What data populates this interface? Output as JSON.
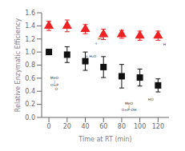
{
  "chart_data": {
    "type": "scatter",
    "xlabel": "Time at RT (min)",
    "ylabel": "Relative Enzymatic Efficiency",
    "x": [
      0,
      20,
      40,
      60,
      80,
      100,
      120
    ],
    "series": [
      {
        "color": "#EE2222",
        "marker": "triangle",
        "values": [
          1.4,
          1.4,
          1.35,
          1.27,
          1.27,
          1.25,
          1.25
        ],
        "errors": [
          0.07,
          0.09,
          0.07,
          0.08,
          0.06,
          0.07,
          0.07
        ]
      },
      {
        "color": "#111111",
        "marker": "square",
        "values": [
          1.0,
          0.96,
          0.86,
          0.77,
          0.63,
          0.61,
          0.49
        ],
        "errors": [
          0.04,
          0.12,
          0.14,
          0.16,
          0.18,
          0.13,
          0.1
        ]
      }
    ],
    "xlim": [
      -8,
      132
    ],
    "ylim": [
      0.0,
      1.6
    ],
    "xticks": [
      0,
      20,
      40,
      60,
      80,
      100,
      120
    ],
    "yticks": [
      {
        "value": 0.0,
        "label": "0.0"
      },
      0.2,
      0.4,
      0.6,
      0.8,
      {
        "value": 1.0,
        "label": "1.0"
      },
      1.2,
      1.4,
      1.6
    ],
    "grid": false,
    "annotations": [
      {
        "text": "HO",
        "x": 57,
        "y": 1.21
      },
      {
        "text": "H",
        "x": 127,
        "y": 1.12
      },
      {
        "text": "+",
        "x": 52,
        "y": 1.13
      },
      {
        "text": "MeO",
        "x": 6,
        "y": 0.6
      },
      {
        "text": "|",
        "x": 6,
        "y": 0.55
      },
      {
        "text": "O=P",
        "x": 6,
        "y": 0.5
      },
      {
        "text": "O",
        "x": 8,
        "y": 0.43
      },
      {
        "text": "MeO",
        "x": 88,
        "y": 0.22
      },
      {
        "text": "|",
        "x": 88,
        "y": 0.17
      },
      {
        "text": "O=P-OH",
        "x": 88,
        "y": 0.12
      },
      {
        "text": "+ H₂O",
        "x": 46,
        "y": 0.93
      },
      {
        "text": "HO",
        "x": 112,
        "y": 0.28
      }
    ]
  }
}
